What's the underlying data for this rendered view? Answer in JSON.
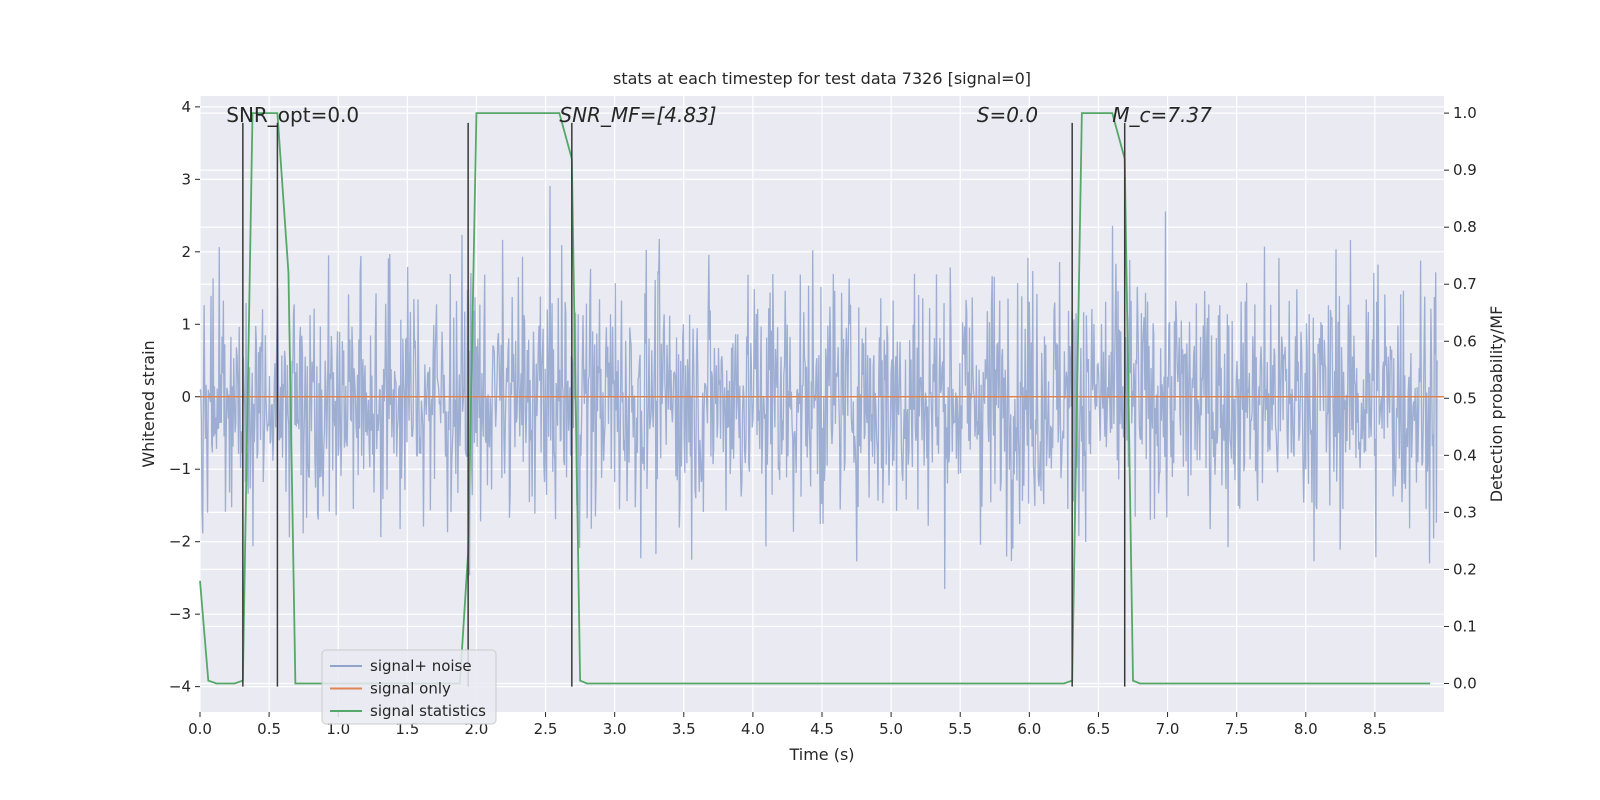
{
  "chart_data": {
    "type": "line",
    "title": "stats at each timestep for test data 7326 [signal=0]",
    "xlabel": "Time (s)",
    "ylabel": "Whitened strain",
    "ylabel_right": "Detection probability/MF",
    "xlim": [
      0.0,
      9.0
    ],
    "ylim": [
      -4.35,
      4.15
    ],
    "ylim_right": [
      -0.05,
      1.03
    ],
    "x_ticks": [
      0.0,
      0.5,
      1.0,
      1.5,
      2.0,
      2.5,
      3.0,
      3.5,
      4.0,
      4.5,
      5.0,
      5.5,
      6.0,
      6.5,
      7.0,
      7.5,
      8.0,
      8.5
    ],
    "x_tick_labels": [
      "0.0",
      "0.5",
      "1.0",
      "1.5",
      "2.0",
      "2.5",
      "3.0",
      "3.5",
      "4.0",
      "4.5",
      "5.0",
      "5.5",
      "6.0",
      "6.5",
      "7.0",
      "7.5",
      "8.0",
      "8.5"
    ],
    "y_ticks": [
      -4,
      -3,
      -2,
      -1,
      0,
      1,
      2,
      3,
      4
    ],
    "y_tick_labels": [
      "−4",
      "−3",
      "−2",
      "−1",
      "0",
      "1",
      "2",
      "3",
      "4"
    ],
    "y_ticks_right": [
      0.0,
      0.1,
      0.2,
      0.3,
      0.4,
      0.5,
      0.6,
      0.7,
      0.8,
      0.9,
      1.0
    ],
    "y_tick_labels_right": [
      "0.0",
      "0.1",
      "0.2",
      "0.3",
      "0.4",
      "0.5",
      "0.6",
      "0.7",
      "0.8",
      "0.9",
      "1.0"
    ],
    "grid": true,
    "legend_position": "lower-left",
    "series": [
      {
        "name": "signal+ noise",
        "color": "#8fa3cc",
        "axis": "left",
        "style": "dense-noise",
        "envelope_typical": [
          -1.5,
          1.5
        ],
        "extremes": [
          -3.9,
          3.8
        ]
      },
      {
        "name": "signal only",
        "color": "#dd8452",
        "axis": "left",
        "x": [
          0.0,
          9.0
        ],
        "y": [
          0.0,
          0.0
        ]
      },
      {
        "name": "signal statistics",
        "color": "#55a868",
        "axis": "right",
        "x": [
          0.0,
          0.06,
          0.12,
          0.25,
          0.31,
          0.38,
          0.56,
          0.64,
          0.69,
          1.8,
          1.88,
          1.94,
          2.0,
          2.6,
          2.69,
          2.75,
          2.8,
          6.25,
          6.31,
          6.38,
          6.6,
          6.69,
          6.75,
          6.8,
          8.9
        ],
        "y": [
          0.18,
          0.005,
          0.0,
          0.0,
          0.005,
          1.0,
          1.0,
          0.72,
          0.0,
          0.0,
          0.0,
          0.23,
          1.0,
          1.0,
          0.92,
          0.005,
          0.0,
          0.0,
          0.005,
          1.0,
          1.0,
          0.92,
          0.005,
          0.0,
          0.0
        ]
      }
    ],
    "vertical_markers": {
      "color": "#3a3a3a",
      "x": [
        0.31,
        0.56,
        1.94,
        2.69,
        6.31,
        6.69
      ],
      "y_range": [
        -4.0,
        3.78
      ]
    },
    "annotations": [
      {
        "text": "SNR_opt=0.0",
        "italic": false,
        "x": 0.19
      },
      {
        "text": "SNR_MF=[4.83]",
        "italic": true,
        "x": 2.6
      },
      {
        "text": "S=0.0",
        "italic": true,
        "x": 5.62
      },
      {
        "text": "M_c=7.37",
        "italic": true,
        "x": 6.6
      }
    ],
    "annotation_y": 3.9
  },
  "legend": {
    "items": [
      {
        "label": "signal+ noise",
        "color": "#8fa3cc"
      },
      {
        "label": "signal only",
        "color": "#dd8452"
      },
      {
        "label": "signal statistics",
        "color": "#55a868"
      }
    ]
  }
}
